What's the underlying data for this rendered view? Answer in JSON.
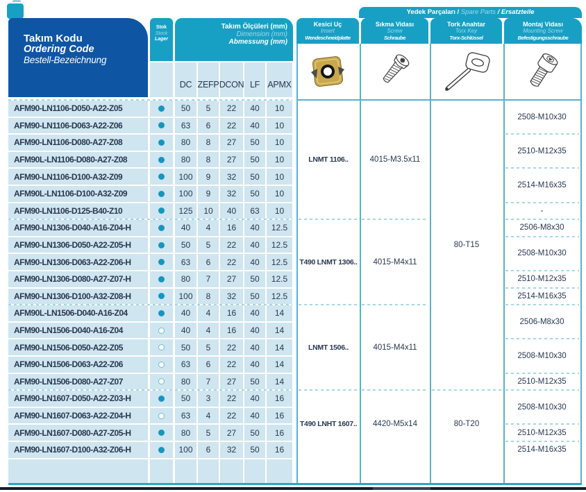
{
  "header": {
    "code_column": {
      "tr": "Takım Kodu",
      "en": "Ordering Code",
      "de": "Bestell-Bezeichnung"
    },
    "stock_column": {
      "tr": "Stok",
      "en": "Stock",
      "de": "Lager"
    },
    "dimensions_column": {
      "tr": "Takım Ölçüleri (mm)",
      "en": "Dimension (mm)",
      "de": "Abmessung (mm)"
    },
    "spare_parts_bar": {
      "tr": "Yedek Parçaları",
      "sep1": " / ",
      "en": "Spare Parts",
      "sep2": " / ",
      "de": "Ersatzteile"
    },
    "insert_column": {
      "tr": "Kesici Uç",
      "en": "Insert",
      "de": "Wendeschneidplatte"
    },
    "screw_column": {
      "tr": "Sıkma Vidası",
      "en": "Screw",
      "de": "Schraube"
    },
    "torx_column": {
      "tr": "Tork Anahtar",
      "en": "Torx Key",
      "de": "Torx-Schlüssel"
    },
    "mounting_column": {
      "tr": "Montaj Vidası",
      "en": "Mounting Screw",
      "de": "Befestigungsschraube"
    }
  },
  "dimension_headers": [
    "DC",
    "ZEFP",
    "DCON",
    "LF",
    "APMX"
  ],
  "rows": [
    {
      "code": "AFM90-LN1106-D050-A22-Z05",
      "stock": "filled",
      "dc": "50",
      "zefp": "5",
      "dcon": "22",
      "lf": "40",
      "apmx": "10"
    },
    {
      "code": "AFM90-LN1106-D063-A22-Z06",
      "stock": "filled",
      "dc": "63",
      "zefp": "6",
      "dcon": "22",
      "lf": "40",
      "apmx": "10"
    },
    {
      "code": "AFM90-LN1106-D080-A27-Z08",
      "stock": "filled",
      "dc": "80",
      "zefp": "8",
      "dcon": "27",
      "lf": "50",
      "apmx": "10"
    },
    {
      "code": "AFM90L-LN1106-D080-A27-Z08",
      "stock": "filled",
      "dc": "80",
      "zefp": "8",
      "dcon": "27",
      "lf": "50",
      "apmx": "10"
    },
    {
      "code": "AFM90-LN1106-D100-A32-Z09",
      "stock": "filled",
      "dc": "100",
      "zefp": "9",
      "dcon": "32",
      "lf": "50",
      "apmx": "10"
    },
    {
      "code": "AFM90L-LN1106-D100-A32-Z09",
      "stock": "filled",
      "dc": "100",
      "zefp": "9",
      "dcon": "32",
      "lf": "50",
      "apmx": "10"
    },
    {
      "code": "AFM90-LN1106-D125-B40-Z10",
      "stock": "filled",
      "dc": "125",
      "zefp": "10",
      "dcon": "40",
      "lf": "63",
      "apmx": "10"
    },
    {
      "code": "AFM90-LN1306-D040-A16-Z04-H",
      "stock": "filled",
      "dc": "40",
      "zefp": "4",
      "dcon": "16",
      "lf": "40",
      "apmx": "12.5"
    },
    {
      "code": "AFM90-LN1306-D050-A22-Z05-H",
      "stock": "filled",
      "dc": "50",
      "zefp": "5",
      "dcon": "22",
      "lf": "40",
      "apmx": "12.5"
    },
    {
      "code": "AFM90-LN1306-D063-A22-Z06-H",
      "stock": "filled",
      "dc": "63",
      "zefp": "6",
      "dcon": "22",
      "lf": "40",
      "apmx": "12.5"
    },
    {
      "code": "AFM90-LN1306-D080-A27-Z07-H",
      "stock": "filled",
      "dc": "80",
      "zefp": "7",
      "dcon": "27",
      "lf": "50",
      "apmx": "12.5"
    },
    {
      "code": "AFM90-LN1306-D100-A32-Z08-H",
      "stock": "filled",
      "dc": "100",
      "zefp": "8",
      "dcon": "32",
      "lf": "50",
      "apmx": "12.5"
    },
    {
      "code": "AFM90L-LN1506-D040-A16-Z04",
      "stock": "filled",
      "dc": "40",
      "zefp": "4",
      "dcon": "16",
      "lf": "40",
      "apmx": "14"
    },
    {
      "code": "AFM90-LN1506-D040-A16-Z04",
      "stock": "open",
      "dc": "40",
      "zefp": "4",
      "dcon": "16",
      "lf": "40",
      "apmx": "14"
    },
    {
      "code": "AFM90-LN1506-D050-A22-Z05",
      "stock": "open",
      "dc": "50",
      "zefp": "5",
      "dcon": "22",
      "lf": "40",
      "apmx": "14"
    },
    {
      "code": "AFM90-LN1506-D063-A22-Z06",
      "stock": "open",
      "dc": "63",
      "zefp": "6",
      "dcon": "22",
      "lf": "40",
      "apmx": "14"
    },
    {
      "code": "AFM90-LN1506-D080-A27-Z07",
      "stock": "open",
      "dc": "80",
      "zefp": "7",
      "dcon": "27",
      "lf": "50",
      "apmx": "14"
    },
    {
      "code": "AFM90-LN1607-D050-A22-Z03-H",
      "stock": "filled",
      "dc": "50",
      "zefp": "3",
      "dcon": "22",
      "lf": "40",
      "apmx": "16"
    },
    {
      "code": "AFM90-LN1607-D063-A22-Z04-H",
      "stock": "open",
      "dc": "63",
      "zefp": "4",
      "dcon": "22",
      "lf": "40",
      "apmx": "16"
    },
    {
      "code": "AFM90-LN1607-D080-A27-Z05-H",
      "stock": "filled",
      "dc": "80",
      "zefp": "5",
      "dcon": "27",
      "lf": "50",
      "apmx": "16"
    },
    {
      "code": "AFM90-LN1607-D100-A32-Z06-H",
      "stock": "filled",
      "dc": "100",
      "zefp": "6",
      "dcon": "32",
      "lf": "50",
      "apmx": "16"
    }
  ],
  "groups": [
    {
      "insert": "LNMT 1106..",
      "screw": "4015-M3.5x11",
      "row_count": 7
    },
    {
      "insert": "T490 LNMT 1306..",
      "screw": "4015-M4x11",
      "row_count": 5
    },
    {
      "insert": "LNMT 1506..",
      "screw": "4015-M4x11",
      "row_count": 5
    },
    {
      "insert": "T490 LNHT 1607..",
      "screw": "4420-M5x14",
      "row_count": 4
    }
  ],
  "torx_cells": [
    {
      "label": "80-T15",
      "from_row": 0,
      "to_row": 17
    },
    {
      "label": "80-T20",
      "from_row": 17,
      "to_row": 21
    }
  ],
  "mounting_cells": [
    {
      "label": "2508-M10x30",
      "from_row": 0,
      "to_row": 2
    },
    {
      "label": "2510-M12x35",
      "from_row": 2,
      "to_row": 4
    },
    {
      "label": "2514-M16x35",
      "from_row": 4,
      "to_row": 6
    },
    {
      "label": "-",
      "from_row": 6,
      "to_row": 7
    },
    {
      "label": "2506-M8x30",
      "from_row": 7,
      "to_row": 8
    },
    {
      "label": "2508-M10x30",
      "from_row": 8,
      "to_row": 10
    },
    {
      "label": "2510-M12x35",
      "from_row": 10,
      "to_row": 11
    },
    {
      "label": "2514-M16x35",
      "from_row": 11,
      "to_row": 12
    },
    {
      "label": "2506-M8x30",
      "from_row": 12,
      "to_row": 14
    },
    {
      "label": "2508-M10x30",
      "from_row": 14,
      "to_row": 16
    },
    {
      "label": "2510-M12x35",
      "from_row": 16,
      "to_row": 17
    },
    {
      "label": "2508-M10x30",
      "from_row": 17,
      "to_row": 19
    },
    {
      "label": "2510-M12x35",
      "from_row": 19,
      "to_row": 20
    },
    {
      "label": "2514-M16x35",
      "from_row": 20,
      "to_row": 21
    }
  ],
  "icons": {
    "bookmark": "bookmark-tab-icon",
    "insert": "insert-photo",
    "screw": "torx-screw-drawing",
    "torx_key": "torx-key-drawing",
    "mounting_screw": "cap-screw-drawing"
  },
  "colors": {
    "darkblue": "#0e56a4",
    "teal": "#18a0c4",
    "pale": "#a3d8ea",
    "lightblue": "#cfe5ef",
    "ink": "#283850",
    "dot": "#1795bc",
    "line": "#57b1cd",
    "dash": "#a4d7e5",
    "bar": "#141b29",
    "gold": "#c9a84c"
  }
}
